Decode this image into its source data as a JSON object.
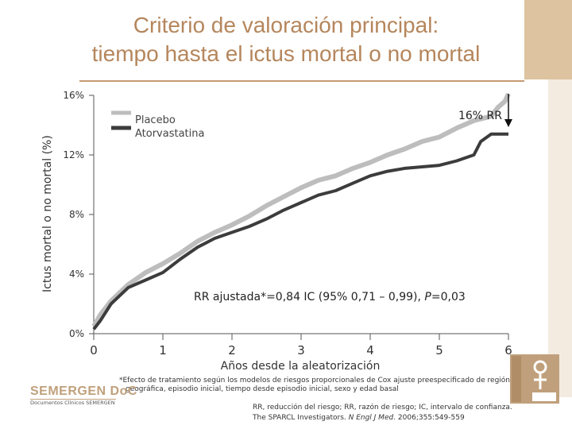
{
  "title_line1": "Criterio de valoración principal:",
  "title_line2": "tiempo hasta el ictus mortal o no mortal",
  "footnote_line1": "*Efecto de tratamiento según los modelos de riesgos proporcionales de Cox ajuste preespecificado de región",
  "footnote_line2": "geográfica, episodio inicial, tiempo desde episodio inicial, sexo y edad basal",
  "reference_line1": "RR, reducción del riesgo; RR, razón de riesgo; IC, intervalo de confianza.",
  "reference_prefix": "The SPARCL Investigators. ",
  "reference_journal": "N Engl J Med",
  "reference_suffix": ". 2006;355:549-559",
  "brand_name": "SEMERGEN DoC",
  "brand_subtitle": "Documentos Clínicos SEMERGEN",
  "colors": {
    "title": "#b5865c",
    "placebo": "#bdbdbd",
    "atorvastatina": "#3c3c3c",
    "accent": "#c49a72"
  },
  "chart_data": {
    "type": "line",
    "xlabel": "Años desde la aleatorización",
    "ylabel": "Ictus mortal o no mortal (%)",
    "xlim": [
      0,
      6
    ],
    "ylim": [
      0,
      16
    ],
    "x_ticks": [
      "0",
      "1",
      "2",
      "3",
      "4",
      "5",
      "6"
    ],
    "y_ticks": [
      "0%",
      "4%",
      "8%",
      "12%",
      "16%"
    ],
    "grid": false,
    "legend_position": "top-left",
    "annotations": {
      "rr": "16% RR",
      "adjusted_prefix": "RR ajustada*=0,84 IC (95% 0,71 – 0,99), ",
      "p_label": "P",
      "p_value": "=0,03"
    },
    "series": [
      {
        "name": "Placebo",
        "x": [
          0,
          0.1,
          0.25,
          0.5,
          0.75,
          1.0,
          1.25,
          1.5,
          1.75,
          2.0,
          2.25,
          2.5,
          2.75,
          3.0,
          3.25,
          3.5,
          3.75,
          4.0,
          4.25,
          4.5,
          4.75,
          5.0,
          5.25,
          5.5,
          5.75,
          5.85,
          5.95,
          6.0
        ],
        "y": [
          0.5,
          1.3,
          2.2,
          3.3,
          4.1,
          4.7,
          5.4,
          6.2,
          6.8,
          7.3,
          7.9,
          8.6,
          9.2,
          9.8,
          10.3,
          10.6,
          11.1,
          11.5,
          12.0,
          12.4,
          12.9,
          13.2,
          13.8,
          14.3,
          14.6,
          15.2,
          15.6,
          16.1
        ]
      },
      {
        "name": "Atorvastatina",
        "x": [
          0,
          0.1,
          0.25,
          0.5,
          0.75,
          1.0,
          1.25,
          1.5,
          1.75,
          2.0,
          2.25,
          2.5,
          2.75,
          3.0,
          3.25,
          3.5,
          3.75,
          4.0,
          4.25,
          4.5,
          4.75,
          5.0,
          5.25,
          5.5,
          5.6,
          5.75,
          6.0
        ],
        "y": [
          0.3,
          0.9,
          2.0,
          3.1,
          3.6,
          4.1,
          5.0,
          5.8,
          6.4,
          6.8,
          7.2,
          7.7,
          8.3,
          8.8,
          9.3,
          9.6,
          10.1,
          10.6,
          10.9,
          11.1,
          11.2,
          11.3,
          11.6,
          12.0,
          12.9,
          13.4,
          13.4
        ]
      }
    ]
  }
}
